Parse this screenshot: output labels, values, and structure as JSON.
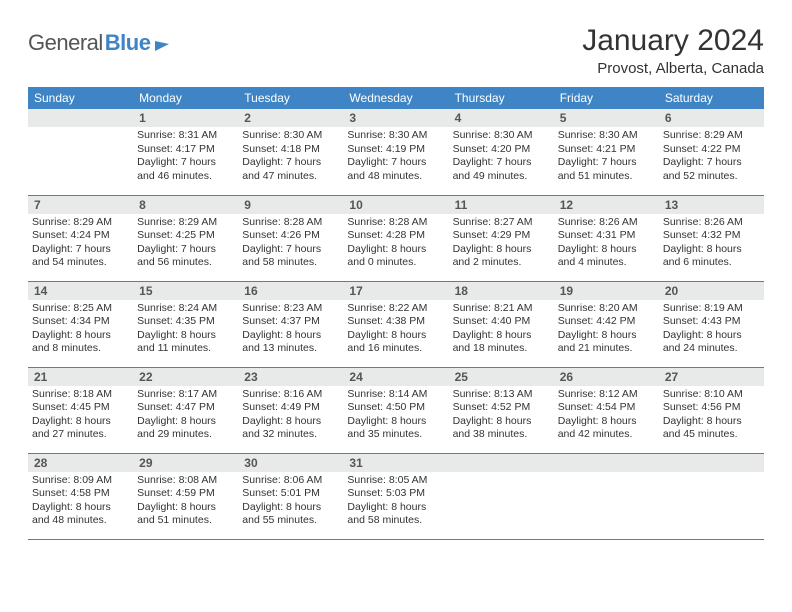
{
  "logo": {
    "part1": "General",
    "part2": "Blue"
  },
  "title": "January 2024",
  "location": "Provost, Alberta, Canada",
  "colors": {
    "brand_blue": "#3f85c6",
    "header_bg": "#3f85c6",
    "header_text": "#ffffff",
    "daynum_bg": "#e8eaea",
    "daynum_text": "#555555",
    "body_text": "#333333",
    "row_border": "#3f85c6",
    "page_bg": "#ffffff"
  },
  "daynames": [
    "Sunday",
    "Monday",
    "Tuesday",
    "Wednesday",
    "Thursday",
    "Friday",
    "Saturday"
  ],
  "weeks": [
    [
      null,
      {
        "n": "1",
        "sr": "8:31 AM",
        "ss": "4:17 PM",
        "dl": "7 hours and 46 minutes."
      },
      {
        "n": "2",
        "sr": "8:30 AM",
        "ss": "4:18 PM",
        "dl": "7 hours and 47 minutes."
      },
      {
        "n": "3",
        "sr": "8:30 AM",
        "ss": "4:19 PM",
        "dl": "7 hours and 48 minutes."
      },
      {
        "n": "4",
        "sr": "8:30 AM",
        "ss": "4:20 PM",
        "dl": "7 hours and 49 minutes."
      },
      {
        "n": "5",
        "sr": "8:30 AM",
        "ss": "4:21 PM",
        "dl": "7 hours and 51 minutes."
      },
      {
        "n": "6",
        "sr": "8:29 AM",
        "ss": "4:22 PM",
        "dl": "7 hours and 52 minutes."
      }
    ],
    [
      {
        "n": "7",
        "sr": "8:29 AM",
        "ss": "4:24 PM",
        "dl": "7 hours and 54 minutes."
      },
      {
        "n": "8",
        "sr": "8:29 AM",
        "ss": "4:25 PM",
        "dl": "7 hours and 56 minutes."
      },
      {
        "n": "9",
        "sr": "8:28 AM",
        "ss": "4:26 PM",
        "dl": "7 hours and 58 minutes."
      },
      {
        "n": "10",
        "sr": "8:28 AM",
        "ss": "4:28 PM",
        "dl": "8 hours and 0 minutes."
      },
      {
        "n": "11",
        "sr": "8:27 AM",
        "ss": "4:29 PM",
        "dl": "8 hours and 2 minutes."
      },
      {
        "n": "12",
        "sr": "8:26 AM",
        "ss": "4:31 PM",
        "dl": "8 hours and 4 minutes."
      },
      {
        "n": "13",
        "sr": "8:26 AM",
        "ss": "4:32 PM",
        "dl": "8 hours and 6 minutes."
      }
    ],
    [
      {
        "n": "14",
        "sr": "8:25 AM",
        "ss": "4:34 PM",
        "dl": "8 hours and 8 minutes."
      },
      {
        "n": "15",
        "sr": "8:24 AM",
        "ss": "4:35 PM",
        "dl": "8 hours and 11 minutes."
      },
      {
        "n": "16",
        "sr": "8:23 AM",
        "ss": "4:37 PM",
        "dl": "8 hours and 13 minutes."
      },
      {
        "n": "17",
        "sr": "8:22 AM",
        "ss": "4:38 PM",
        "dl": "8 hours and 16 minutes."
      },
      {
        "n": "18",
        "sr": "8:21 AM",
        "ss": "4:40 PM",
        "dl": "8 hours and 18 minutes."
      },
      {
        "n": "19",
        "sr": "8:20 AM",
        "ss": "4:42 PM",
        "dl": "8 hours and 21 minutes."
      },
      {
        "n": "20",
        "sr": "8:19 AM",
        "ss": "4:43 PM",
        "dl": "8 hours and 24 minutes."
      }
    ],
    [
      {
        "n": "21",
        "sr": "8:18 AM",
        "ss": "4:45 PM",
        "dl": "8 hours and 27 minutes."
      },
      {
        "n": "22",
        "sr": "8:17 AM",
        "ss": "4:47 PM",
        "dl": "8 hours and 29 minutes."
      },
      {
        "n": "23",
        "sr": "8:16 AM",
        "ss": "4:49 PM",
        "dl": "8 hours and 32 minutes."
      },
      {
        "n": "24",
        "sr": "8:14 AM",
        "ss": "4:50 PM",
        "dl": "8 hours and 35 minutes."
      },
      {
        "n": "25",
        "sr": "8:13 AM",
        "ss": "4:52 PM",
        "dl": "8 hours and 38 minutes."
      },
      {
        "n": "26",
        "sr": "8:12 AM",
        "ss": "4:54 PM",
        "dl": "8 hours and 42 minutes."
      },
      {
        "n": "27",
        "sr": "8:10 AM",
        "ss": "4:56 PM",
        "dl": "8 hours and 45 minutes."
      }
    ],
    [
      {
        "n": "28",
        "sr": "8:09 AM",
        "ss": "4:58 PM",
        "dl": "8 hours and 48 minutes."
      },
      {
        "n": "29",
        "sr": "8:08 AM",
        "ss": "4:59 PM",
        "dl": "8 hours and 51 minutes."
      },
      {
        "n": "30",
        "sr": "8:06 AM",
        "ss": "5:01 PM",
        "dl": "8 hours and 55 minutes."
      },
      {
        "n": "31",
        "sr": "8:05 AM",
        "ss": "5:03 PM",
        "dl": "8 hours and 58 minutes."
      },
      null,
      null,
      null
    ]
  ],
  "labels": {
    "sunrise_prefix": "Sunrise: ",
    "sunset_prefix": "Sunset: ",
    "daylight_prefix": "Daylight: "
  }
}
